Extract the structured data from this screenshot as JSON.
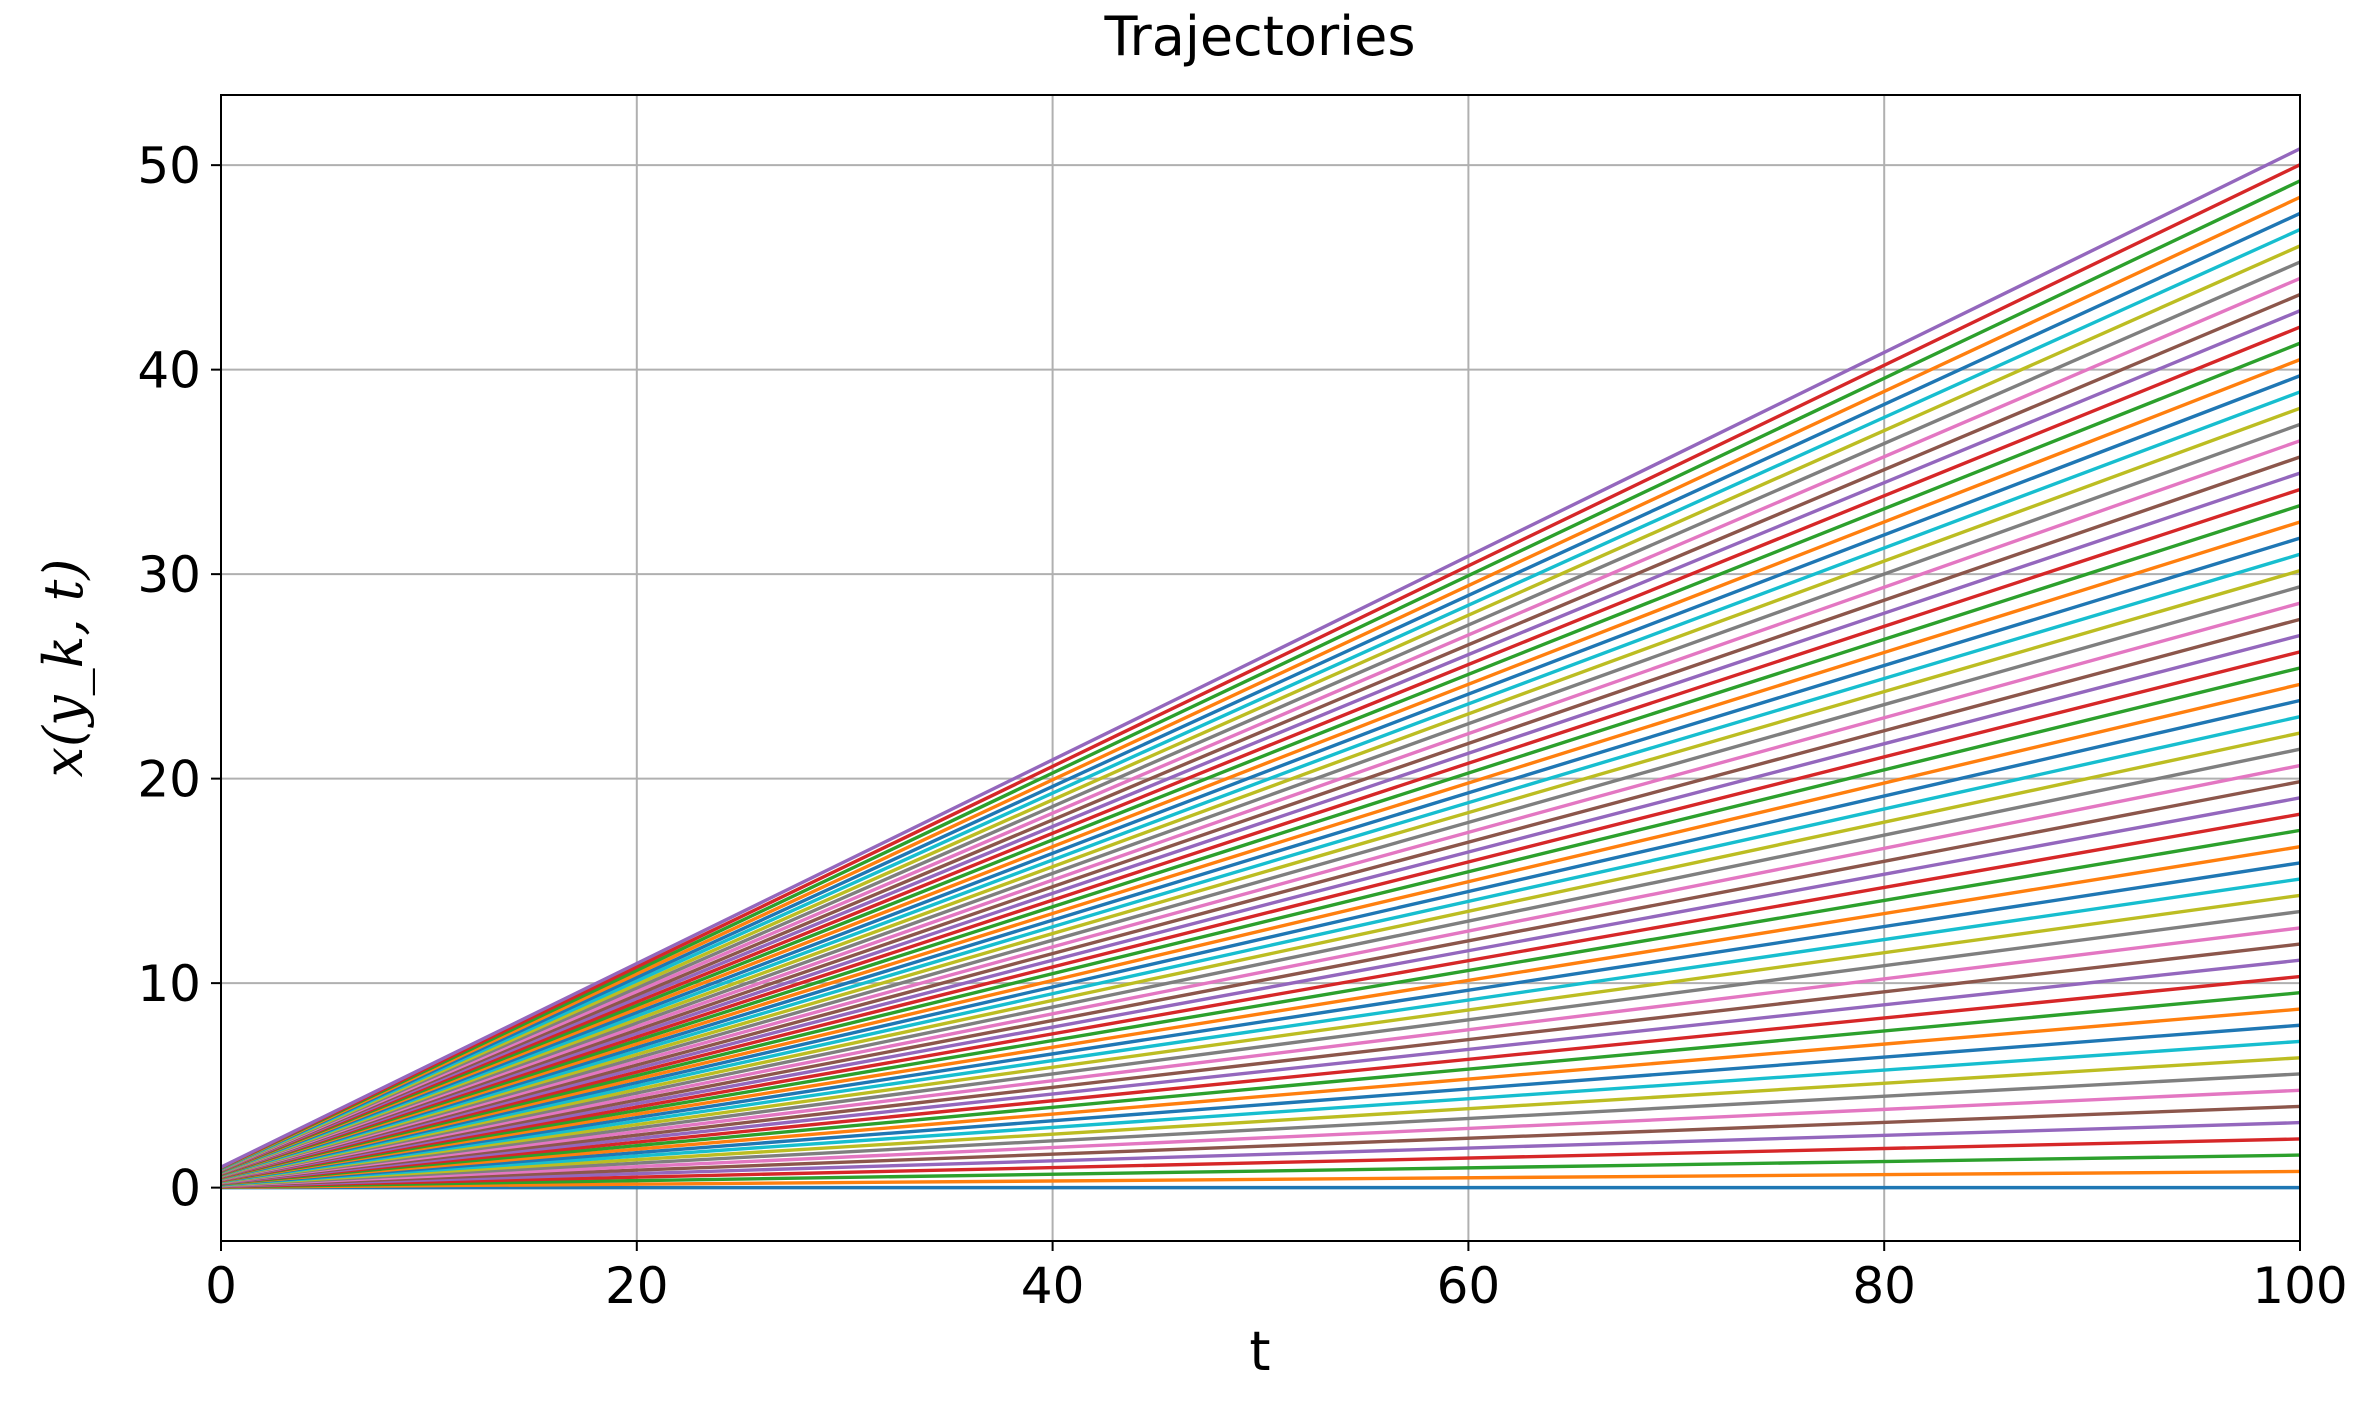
{
  "chart_data": {
    "type": "line",
    "title": "Trajectories",
    "xlabel": "t",
    "ylabel": "x(y_k, t)",
    "x": [
      0,
      100
    ],
    "xlim": [
      0,
      100
    ],
    "xticks": [
      0,
      20,
      40,
      60,
      80,
      100
    ],
    "ylim": [
      -2.61,
      53.43
    ],
    "yticks": [
      0,
      10,
      20,
      30,
      40,
      50
    ],
    "grid": true,
    "colors": [
      "#1f77b4",
      "#ff7f0e",
      "#2ca02c",
      "#d62728",
      "#9467bd",
      "#8c564b",
      "#e377c2",
      "#7f7f7f",
      "#bcbd22",
      "#17becf"
    ],
    "series": [
      {
        "values": [
          0,
          0
        ]
      },
      {
        "values": [
          0.016,
          0.79
        ]
      },
      {
        "values": [
          0.031,
          1.59
        ]
      },
      {
        "values": [
          0.047,
          2.38
        ]
      },
      {
        "values": [
          0.063,
          3.18
        ]
      },
      {
        "values": [
          0.078,
          3.97
        ]
      },
      {
        "values": [
          0.094,
          4.76
        ]
      },
      {
        "values": [
          0.109,
          5.56
        ]
      },
      {
        "values": [
          0.125,
          6.35
        ]
      },
      {
        "values": [
          0.141,
          7.15
        ]
      },
      {
        "values": [
          0.156,
          7.94
        ]
      },
      {
        "values": [
          0.172,
          8.73
        ]
      },
      {
        "values": [
          0.188,
          9.53
        ]
      },
      {
        "values": [
          0.203,
          10.32
        ]
      },
      {
        "values": [
          0.219,
          11.12
        ]
      },
      {
        "values": [
          0.234,
          11.91
        ]
      },
      {
        "values": [
          0.25,
          12.7
        ]
      },
      {
        "values": [
          0.266,
          13.5
        ]
      },
      {
        "values": [
          0.281,
          14.29
        ]
      },
      {
        "values": [
          0.297,
          15.09
        ]
      },
      {
        "values": [
          0.313,
          15.88
        ]
      },
      {
        "values": [
          0.328,
          16.67
        ]
      },
      {
        "values": [
          0.344,
          17.47
        ]
      },
      {
        "values": [
          0.359,
          18.26
        ]
      },
      {
        "values": [
          0.375,
          19.06
        ]
      },
      {
        "values": [
          0.391,
          19.85
        ]
      },
      {
        "values": [
          0.406,
          20.64
        ]
      },
      {
        "values": [
          0.422,
          21.44
        ]
      },
      {
        "values": [
          0.438,
          22.23
        ]
      },
      {
        "values": [
          0.453,
          23.03
        ]
      },
      {
        "values": [
          0.469,
          23.82
        ]
      },
      {
        "values": [
          0.484,
          24.61
        ]
      },
      {
        "values": [
          0.5,
          25.41
        ]
      },
      {
        "values": [
          0.516,
          26.2
        ]
      },
      {
        "values": [
          0.531,
          27
        ]
      },
      {
        "values": [
          0.547,
          27.79
        ]
      },
      {
        "values": [
          0.563,
          28.58
        ]
      },
      {
        "values": [
          0.578,
          29.38
        ]
      },
      {
        "values": [
          0.594,
          30.17
        ]
      },
      {
        "values": [
          0.609,
          30.97
        ]
      },
      {
        "values": [
          0.625,
          31.76
        ]
      },
      {
        "values": [
          0.641,
          32.55
        ]
      },
      {
        "values": [
          0.656,
          33.35
        ]
      },
      {
        "values": [
          0.672,
          34.14
        ]
      },
      {
        "values": [
          0.688,
          34.94
        ]
      },
      {
        "values": [
          0.703,
          35.73
        ]
      },
      {
        "values": [
          0.719,
          36.52
        ]
      },
      {
        "values": [
          0.734,
          37.32
        ]
      },
      {
        "values": [
          0.75,
          38.11
        ]
      },
      {
        "values": [
          0.766,
          38.91
        ]
      },
      {
        "values": [
          0.781,
          39.7
        ]
      },
      {
        "values": [
          0.797,
          40.49
        ]
      },
      {
        "values": [
          0.813,
          41.29
        ]
      },
      {
        "values": [
          0.828,
          42.08
        ]
      },
      {
        "values": [
          0.844,
          42.88
        ]
      },
      {
        "values": [
          0.859,
          43.67
        ]
      },
      {
        "values": [
          0.875,
          44.46
        ]
      },
      {
        "values": [
          0.891,
          45.26
        ]
      },
      {
        "values": [
          0.906,
          46.05
        ]
      },
      {
        "values": [
          0.922,
          46.85
        ]
      },
      {
        "values": [
          0.938,
          47.64
        ]
      },
      {
        "values": [
          0.953,
          48.43
        ]
      },
      {
        "values": [
          0.969,
          49.23
        ]
      },
      {
        "values": [
          0.984,
          50.02
        ]
      },
      {
        "values": [
          1,
          50.8
        ]
      }
    ]
  }
}
